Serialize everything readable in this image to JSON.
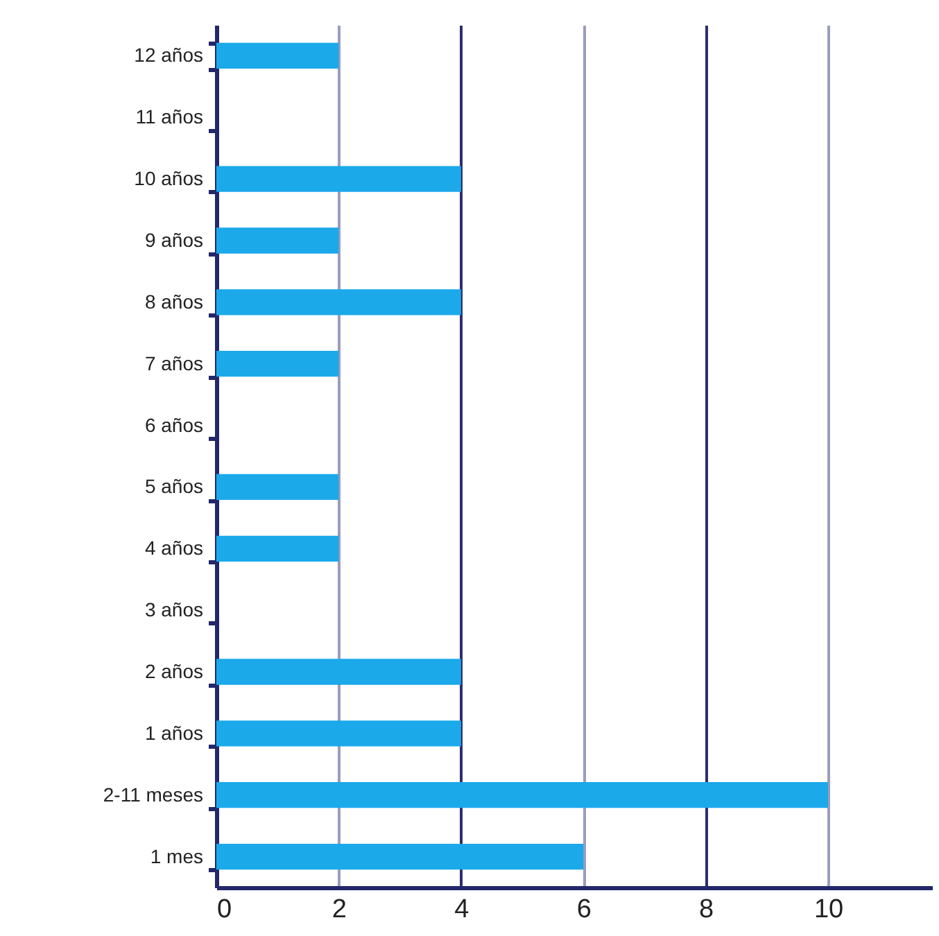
{
  "chart_data": {
    "type": "bar",
    "orientation": "horizontal",
    "categories": [
      "12 años",
      "11 años",
      "10 años",
      "9 años",
      "8 años",
      "7 años",
      "6 años",
      "5 años",
      "4 años",
      "3 años",
      "2 años",
      "1 años",
      "2-11 meses",
      "1 mes"
    ],
    "values": [
      2,
      0,
      4,
      2,
      4,
      2,
      0,
      2,
      2,
      0,
      4,
      4,
      10,
      6
    ],
    "color": "#1ba9ea",
    "xlim": [
      0,
      11.7
    ],
    "xticks": [
      0,
      2,
      4,
      6,
      8,
      10
    ],
    "grid": "x"
  }
}
